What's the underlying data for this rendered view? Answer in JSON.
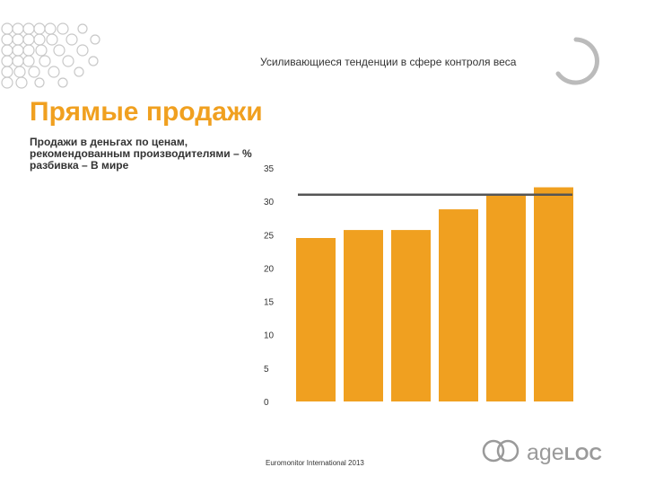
{
  "header": {
    "title": "Усиливающиеся тенденции в сфере контроля веса"
  },
  "slide": {
    "title": "Прямые продажи",
    "subtitle": "Продажи в деньгах по ценам, рекомендованным производителями – % разбивка – В мире",
    "source": "Euromonitor International 2013"
  },
  "logo": {
    "text": "ageLOC",
    "icon": "ageloc-circles-icon"
  },
  "colors": {
    "bar": "#f0a020",
    "accent": "#f0a020",
    "reference_line": "#555555",
    "ring": "#bbbbbb"
  },
  "chart_data": {
    "type": "bar",
    "categories": [
      "",
      "",
      "",
      "",
      "",
      ""
    ],
    "values": [
      24.5,
      25.7,
      25.7,
      28.8,
      30.9,
      32.1
    ],
    "ylim": [
      0,
      35
    ],
    "yticks": [
      "35",
      "30",
      "25",
      "20",
      "15",
      "10",
      "5",
      "0"
    ],
    "reference_line": 31,
    "grid": false,
    "title": "",
    "xlabel": "",
    "ylabel": ""
  }
}
